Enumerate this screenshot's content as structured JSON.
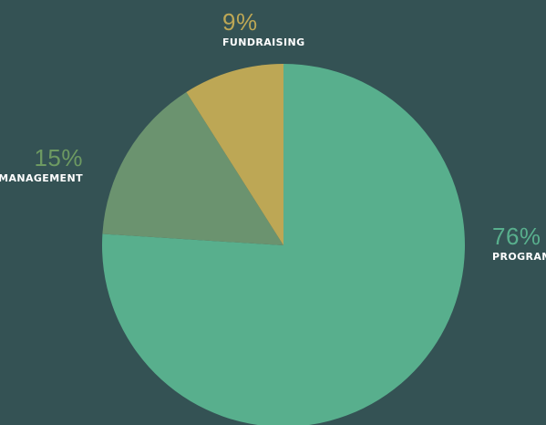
{
  "chart_data": {
    "type": "pie",
    "title": "",
    "start_angle_deg": 0,
    "direction": "clockwise",
    "slices": [
      {
        "name": "PROGRAM",
        "value": 76,
        "label": "76%",
        "color": "#58af8d",
        "label_color": "#58af8d"
      },
      {
        "name": "MANAGEMENT",
        "value": 15,
        "label": "15%",
        "color": "#6b936f",
        "label_color": "#6d9a62"
      },
      {
        "name": "FUNDRAISING",
        "value": 9,
        "label": "9%",
        "color": "#bda755",
        "label_color": "#bda755"
      }
    ]
  },
  "colors": {
    "background": "#345254",
    "label_text": "#ffffff"
  }
}
